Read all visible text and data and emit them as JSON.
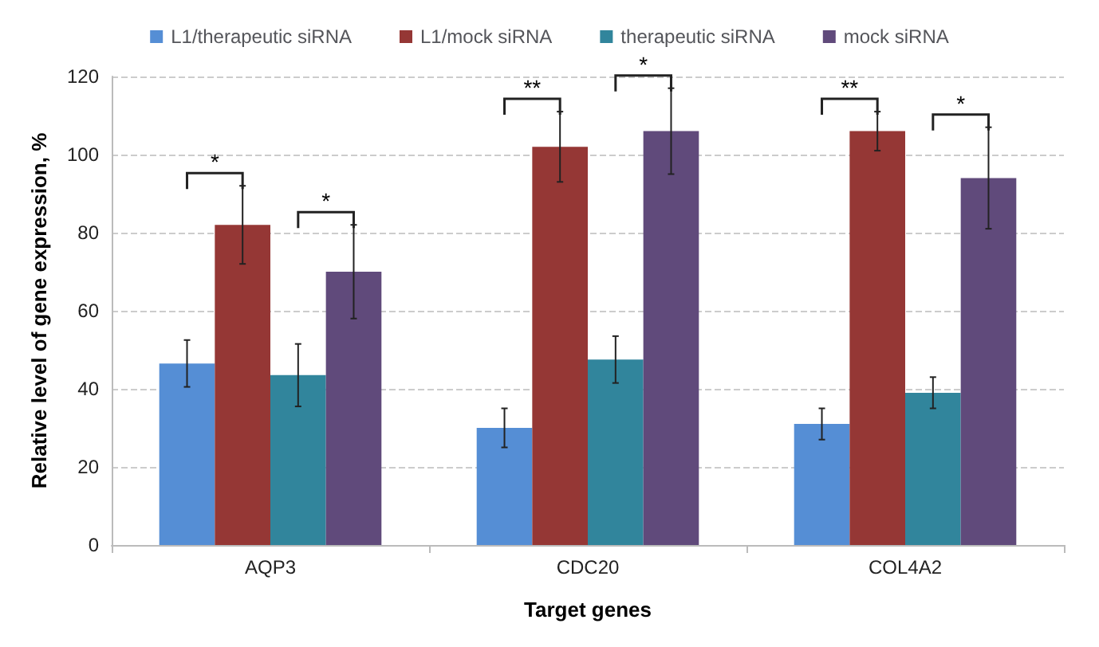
{
  "chart_data": {
    "type": "bar",
    "xlabel": "Target genes",
    "ylabel": "Relative level of gene expression, %",
    "categories": [
      "AQP3",
      "CDC20",
      "COL4A2"
    ],
    "series": [
      {
        "name": "L1/therapeutic siRNA",
        "color": "#558ed5",
        "values": [
          46.5,
          30,
          31
        ],
        "errors": [
          6,
          5,
          4
        ]
      },
      {
        "name": "L1/mock siRNA",
        "color": "#953735",
        "values": [
          82,
          102,
          106
        ],
        "errors": [
          10,
          9,
          5
        ]
      },
      {
        "name": "therapeutic siRNA",
        "color": "#31859c",
        "values": [
          43.5,
          47.5,
          39
        ],
        "errors": [
          8,
          6,
          4
        ]
      },
      {
        "name": "mock siRNA",
        "color": "#604a7b",
        "values": [
          70,
          106,
          94
        ],
        "errors": [
          12,
          11,
          13
        ]
      }
    ],
    "ylim": [
      0,
      120
    ],
    "yticks": [
      0,
      20,
      40,
      60,
      80,
      100,
      120
    ],
    "grid": "y",
    "legend": "top",
    "annotations": [
      "*",
      "*",
      "**",
      "*",
      "**",
      "*"
    ]
  }
}
